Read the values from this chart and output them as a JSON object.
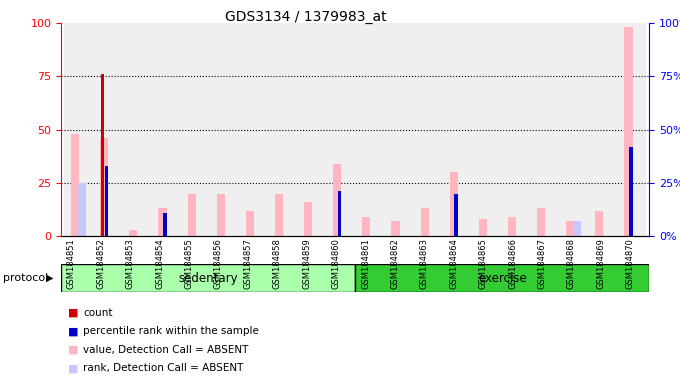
{
  "title": "GDS3134 / 1379983_at",
  "samples": [
    "GSM184851",
    "GSM184852",
    "GSM184853",
    "GSM184854",
    "GSM184855",
    "GSM184856",
    "GSM184857",
    "GSM184858",
    "GSM184859",
    "GSM184860",
    "GSM184861",
    "GSM184862",
    "GSM184863",
    "GSM184864",
    "GSM184865",
    "GSM184866",
    "GSM184867",
    "GSM184868",
    "GSM184869",
    "GSM184870"
  ],
  "value_absent": [
    48,
    46,
    3,
    13,
    20,
    20,
    12,
    20,
    16,
    34,
    9,
    7,
    13,
    30,
    8,
    9,
    13,
    7,
    12,
    98
  ],
  "rank_absent": [
    25,
    0,
    0,
    0,
    0,
    0,
    0,
    0,
    0,
    0,
    0,
    0,
    0,
    0,
    0,
    0,
    0,
    7,
    0,
    0
  ],
  "count_red": [
    0,
    76,
    0,
    0,
    0,
    0,
    0,
    0,
    0,
    0,
    0,
    0,
    0,
    0,
    0,
    0,
    0,
    0,
    0,
    0
  ],
  "rank_blue": [
    0,
    33,
    0,
    11,
    0,
    0,
    0,
    0,
    0,
    21,
    0,
    0,
    0,
    20,
    0,
    0,
    0,
    0,
    0,
    42
  ],
  "sedentary_count": 10,
  "exercise_count": 10,
  "sedentary_label": "sedentary",
  "exercise_label": "exercise",
  "protocol_label": "protocol",
  "ylim": [
    0,
    100
  ],
  "yticks": [
    0,
    25,
    50,
    75,
    100
  ],
  "color_value_absent": "#FFB6C1",
  "color_rank_absent": "#C8C8FF",
  "color_count": "#CC0000",
  "color_rank_blue": "#0000CC",
  "color_sedentary": "#AAFFAA",
  "color_exercise": "#33CC33",
  "color_bg_col": "#D3D3D3",
  "legend_items": [
    "count",
    "percentile rank within the sample",
    "value, Detection Call = ABSENT",
    "rank, Detection Call = ABSENT"
  ],
  "legend_colors": [
    "#CC0000",
    "#0000CC",
    "#FFB6C1",
    "#C8C8FF"
  ]
}
